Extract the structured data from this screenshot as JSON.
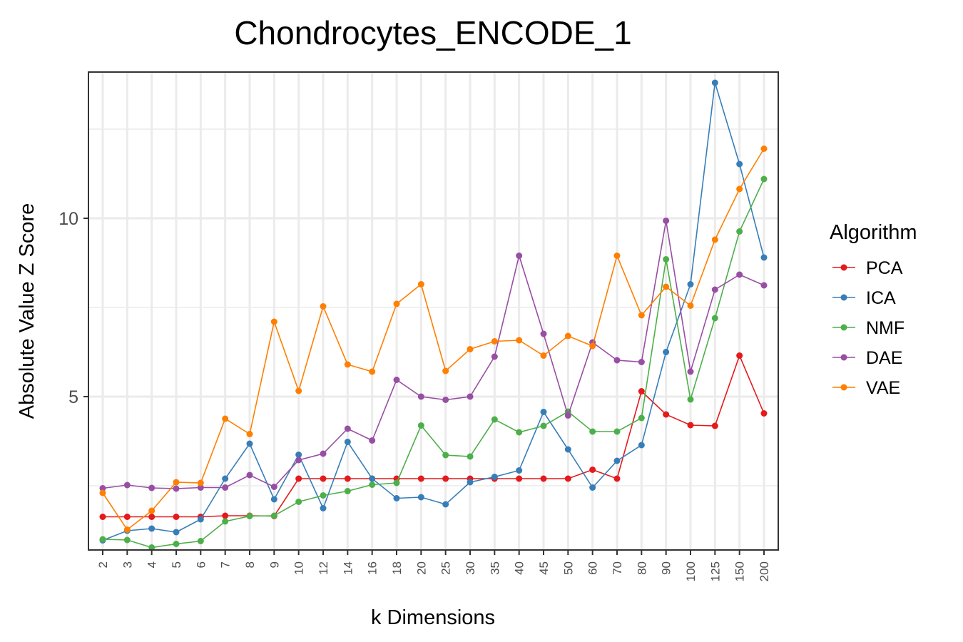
{
  "chart_data": {
    "type": "line",
    "title": "Chondrocytes_ENCODE_1",
    "xlabel": "k Dimensions",
    "ylabel": "Absolute Value Z Score",
    "categories": [
      "2",
      "3",
      "4",
      "5",
      "6",
      "7",
      "8",
      "9",
      "10",
      "12",
      "14",
      "16",
      "18",
      "20",
      "25",
      "30",
      "35",
      "40",
      "45",
      "50",
      "60",
      "70",
      "80",
      "90",
      "100",
      "125",
      "150",
      "200"
    ],
    "ylim": [
      0.7,
      14.1
    ],
    "yticks": [
      5,
      10
    ],
    "ytick_labels": [
      "5",
      "10"
    ],
    "grid": true,
    "legend": {
      "title": "Algorithm",
      "position": "right"
    },
    "series": [
      {
        "name": "PCA",
        "color": "#e41a1c",
        "values": [
          1.63,
          1.63,
          1.63,
          1.63,
          1.63,
          1.66,
          1.66,
          1.65,
          2.7,
          2.7,
          2.7,
          2.7,
          2.7,
          2.7,
          2.7,
          2.7,
          2.7,
          2.7,
          2.7,
          2.7,
          2.95,
          2.7,
          5.15,
          4.5,
          4.2,
          4.18,
          6.15,
          4.53
        ]
      },
      {
        "name": "ICA",
        "color": "#377eb8",
        "values": [
          0.97,
          1.24,
          1.3,
          1.2,
          1.56,
          2.7,
          3.68,
          2.12,
          3.37,
          1.87,
          3.73,
          2.7,
          2.15,
          2.18,
          1.98,
          2.6,
          2.75,
          2.93,
          4.57,
          3.52,
          2.45,
          3.2,
          3.64,
          6.25,
          8.15,
          13.8,
          11.52,
          8.9
        ]
      },
      {
        "name": "NMF",
        "color": "#4daf4a",
        "values": [
          1.0,
          0.98,
          0.77,
          0.87,
          0.95,
          1.5,
          1.65,
          1.66,
          2.05,
          2.23,
          2.35,
          2.53,
          2.58,
          4.19,
          3.36,
          3.32,
          4.36,
          4.0,
          4.18,
          4.58,
          4.02,
          4.02,
          4.4,
          8.85,
          4.92,
          7.2,
          9.63,
          11.1
        ]
      },
      {
        "name": "DAE",
        "color": "#984ea3",
        "values": [
          2.43,
          2.52,
          2.44,
          2.42,
          2.45,
          2.45,
          2.8,
          2.47,
          3.22,
          3.4,
          4.1,
          3.77,
          5.47,
          5.0,
          4.91,
          5.0,
          6.12,
          8.95,
          6.76,
          4.47,
          6.52,
          6.02,
          5.97,
          9.93,
          5.7,
          8.0,
          8.42,
          8.12
        ]
      },
      {
        "name": "VAE",
        "color": "#ff7f00",
        "values": [
          2.3,
          1.27,
          1.8,
          2.6,
          2.58,
          4.38,
          3.95,
          7.1,
          5.16,
          7.53,
          5.9,
          5.7,
          7.6,
          8.15,
          5.72,
          6.33,
          6.55,
          6.58,
          6.15,
          6.7,
          6.42,
          8.95,
          7.28,
          8.08,
          7.55,
          9.4,
          10.82,
          11.95
        ]
      }
    ]
  }
}
